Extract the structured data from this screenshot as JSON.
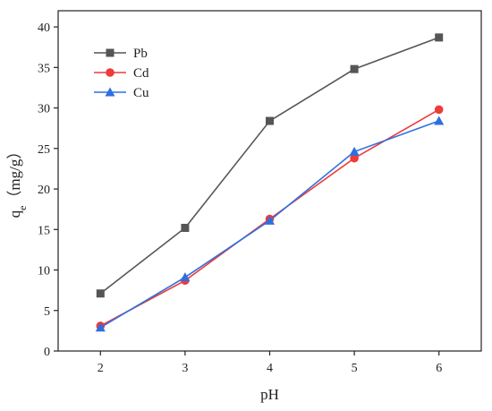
{
  "chart_data": {
    "type": "line",
    "xlabel": "pH",
    "ylabel_main": "q",
    "ylabel_sub": "e",
    "ylabel_rest": "（mg/g）",
    "x": [
      2,
      3,
      4,
      5,
      6
    ],
    "xlim": [
      1.5,
      6.5
    ],
    "ylim": [
      0,
      42
    ],
    "xticks": [
      2,
      3,
      4,
      5,
      6
    ],
    "yticks": [
      0,
      5,
      10,
      15,
      20,
      25,
      30,
      35,
      40
    ],
    "grid": false,
    "legend_position": "top-left",
    "series": [
      {
        "name": "Pb",
        "marker": "square",
        "color": "#555555",
        "values": [
          7.1,
          15.2,
          28.4,
          34.8,
          38.7
        ]
      },
      {
        "name": "Cd",
        "marker": "circle",
        "color": "#ee3b3b",
        "values": [
          3.1,
          8.7,
          16.3,
          23.8,
          29.8
        ]
      },
      {
        "name": "Cu",
        "marker": "triangle",
        "color": "#2e6fe0",
        "values": [
          2.9,
          9.1,
          16.1,
          24.6,
          28.4
        ]
      }
    ]
  }
}
